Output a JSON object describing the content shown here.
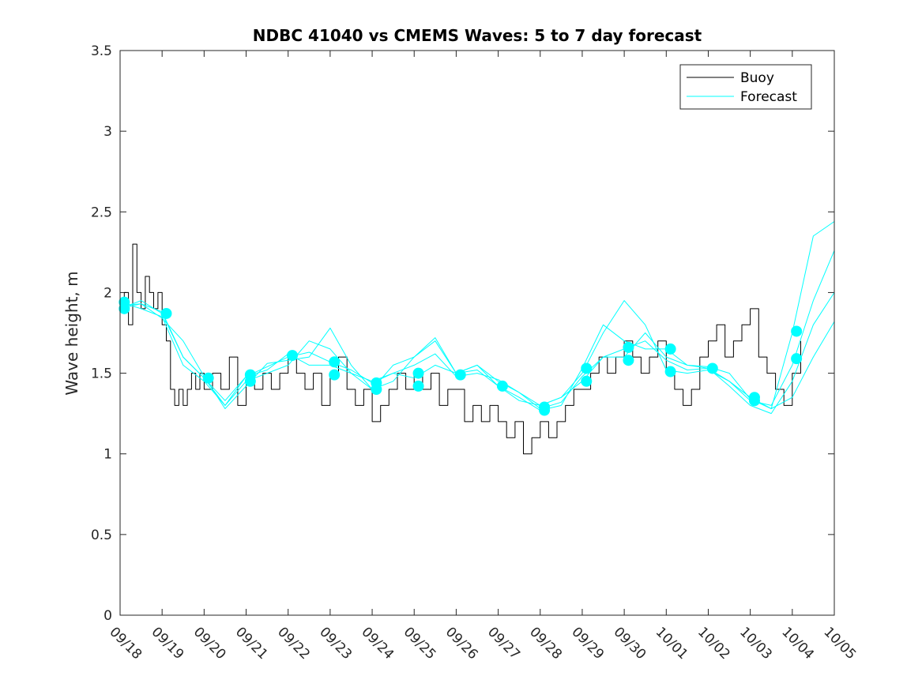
{
  "chart_data": {
    "type": "line",
    "title": "NDBC 41040 vs CMEMS Waves: 5 to 7 day forecast",
    "xlabel": "",
    "ylabel": "Wave height, m",
    "xlim": [
      0,
      17
    ],
    "ylim": [
      0,
      3.5
    ],
    "yticks": [
      0,
      0.5,
      1,
      1.5,
      2,
      2.5,
      3,
      3.5
    ],
    "ytick_labels": [
      "0",
      "0.5",
      "1",
      "1.5",
      "2",
      "2.5",
      "3",
      "3.5"
    ],
    "xticks": [
      0,
      1,
      2,
      3,
      4,
      5,
      6,
      7,
      8,
      9,
      10,
      11,
      12,
      13,
      14,
      15,
      16,
      17
    ],
    "xtick_labels": [
      "09/18",
      "09/19",
      "09/20",
      "09/21",
      "09/22",
      "09/23",
      "09/24",
      "09/25",
      "09/26",
      "09/27",
      "09/28",
      "09/29",
      "09/30",
      "10/01",
      "10/02",
      "10/03",
      "10/04",
      "10/05"
    ],
    "legend": {
      "location": "top-right",
      "entries": [
        "Buoy",
        "Forecast"
      ]
    },
    "colors": {
      "buoy": "#000000",
      "forecast": "#00ffff",
      "axis": "#262626"
    },
    "series": [
      {
        "name": "Buoy",
        "x": [
          0,
          0.1,
          0.2,
          0.3,
          0.4,
          0.5,
          0.6,
          0.7,
          0.8,
          0.9,
          1.0,
          1.1,
          1.2,
          1.3,
          1.4,
          1.5,
          1.6,
          1.7,
          1.8,
          1.9,
          2.0,
          2.2,
          2.4,
          2.6,
          2.8,
          3.0,
          3.2,
          3.4,
          3.6,
          3.8,
          4.0,
          4.2,
          4.4,
          4.6,
          4.8,
          5.0,
          5.2,
          5.4,
          5.6,
          5.8,
          6.0,
          6.2,
          6.4,
          6.6,
          6.8,
          7.0,
          7.2,
          7.4,
          7.6,
          7.8,
          8.0,
          8.2,
          8.4,
          8.6,
          8.8,
          9.0,
          9.2,
          9.4,
          9.6,
          9.8,
          10.0,
          10.2,
          10.4,
          10.6,
          10.8,
          11.0,
          11.2,
          11.4,
          11.6,
          11.8,
          12.0,
          12.2,
          12.4,
          12.6,
          12.8,
          13.0,
          13.2,
          13.4,
          13.6,
          13.8,
          14.0,
          14.2,
          14.4,
          14.6,
          14.8,
          15.0,
          15.2,
          15.4,
          15.6,
          15.8,
          16.0,
          16.2
        ],
        "y": [
          1.9,
          2.0,
          1.8,
          2.3,
          2.0,
          1.9,
          2.1,
          2.0,
          1.9,
          2.0,
          1.8,
          1.7,
          1.4,
          1.3,
          1.4,
          1.3,
          1.4,
          1.5,
          1.4,
          1.5,
          1.4,
          1.5,
          1.4,
          1.6,
          1.3,
          1.5,
          1.4,
          1.5,
          1.4,
          1.5,
          1.6,
          1.5,
          1.4,
          1.5,
          1.3,
          1.5,
          1.6,
          1.4,
          1.3,
          1.4,
          1.2,
          1.3,
          1.4,
          1.5,
          1.4,
          1.5,
          1.4,
          1.5,
          1.3,
          1.4,
          1.4,
          1.2,
          1.3,
          1.2,
          1.3,
          1.2,
          1.1,
          1.2,
          1.0,
          1.1,
          1.2,
          1.1,
          1.2,
          1.3,
          1.4,
          1.4,
          1.5,
          1.6,
          1.5,
          1.6,
          1.7,
          1.6,
          1.5,
          1.6,
          1.7,
          1.5,
          1.4,
          1.3,
          1.4,
          1.6,
          1.7,
          1.8,
          1.6,
          1.7,
          1.8,
          1.9,
          1.6,
          1.5,
          1.4,
          1.3,
          1.5,
          1.7
        ]
      },
      {
        "name": "Forecast",
        "x": [
          0,
          0.5,
          1.0,
          1.5,
          2.0,
          2.5,
          3.0,
          3.5,
          4.0,
          4.5,
          5.0,
          5.5,
          6.0,
          6.5,
          7.0,
          7.5,
          8.0,
          8.5,
          9.0,
          9.5,
          10.0,
          10.5,
          11.0,
          11.5,
          12.0,
          12.5,
          13.0,
          13.5,
          14.0,
          14.5,
          15.0,
          15.5,
          16.0,
          16.5,
          17.0
        ],
        "y": [
          1.9,
          1.95,
          1.87,
          1.6,
          1.47,
          1.33,
          1.48,
          1.54,
          1.6,
          1.63,
          1.57,
          1.52,
          1.44,
          1.5,
          1.47,
          1.55,
          1.5,
          1.55,
          1.45,
          1.38,
          1.28,
          1.32,
          1.48,
          1.6,
          1.65,
          1.7,
          1.58,
          1.52,
          1.53,
          1.45,
          1.33,
          1.3,
          1.55,
          1.95,
          2.26
        ]
      },
      {
        "name": "Forecast",
        "x": [
          0,
          0.5,
          1.0,
          1.5,
          2.0,
          2.5,
          3.0,
          3.5,
          4.0,
          4.5,
          5.0,
          5.5,
          6.0,
          6.5,
          7.0,
          7.5,
          8.0,
          8.5,
          9.0,
          9.5,
          10.0,
          10.5,
          11.0,
          11.5,
          12.0,
          12.5,
          13.0,
          13.5,
          14.0,
          14.5,
          15.0,
          15.5,
          16.0,
          16.5,
          17.0
        ],
        "y": [
          1.94,
          1.9,
          1.85,
          1.55,
          1.45,
          1.3,
          1.45,
          1.5,
          1.55,
          1.7,
          1.65,
          1.5,
          1.4,
          1.55,
          1.6,
          1.7,
          1.5,
          1.52,
          1.42,
          1.35,
          1.27,
          1.3,
          1.53,
          1.8,
          1.7,
          1.65,
          1.65,
          1.55,
          1.54,
          1.5,
          1.34,
          1.28,
          1.75,
          2.35,
          2.44
        ]
      },
      {
        "name": "Forecast",
        "x": [
          0,
          0.5,
          1.0,
          1.5,
          2.0,
          2.5,
          3.0,
          3.5,
          4.0,
          4.5,
          5.0,
          5.5,
          6.0,
          6.5,
          7.0,
          7.5,
          8.0,
          8.5,
          9.0,
          9.5,
          10.0,
          10.5,
          11.0,
          11.5,
          12.0,
          12.5,
          13.0,
          13.5,
          14.0,
          14.5,
          15.0,
          15.5,
          16.0,
          16.5,
          17.0
        ],
        "y": [
          1.92,
          1.93,
          1.84,
          1.7,
          1.48,
          1.28,
          1.42,
          1.56,
          1.58,
          1.6,
          1.78,
          1.55,
          1.4,
          1.45,
          1.6,
          1.72,
          1.5,
          1.55,
          1.42,
          1.33,
          1.3,
          1.35,
          1.45,
          1.6,
          1.6,
          1.75,
          1.6,
          1.55,
          1.53,
          1.42,
          1.3,
          1.25,
          1.45,
          1.8,
          2.0
        ]
      },
      {
        "name": "Forecast",
        "x": [
          0,
          0.5,
          1.0,
          1.5,
          2.0,
          2.5,
          3.0,
          3.5,
          4.0,
          4.5,
          5.0,
          5.5,
          6.0,
          6.5,
          7.0,
          7.5,
          8.0,
          8.5,
          9.0,
          9.5,
          10.0,
          10.5,
          11.0,
          11.5,
          12.0,
          12.5,
          13.0,
          13.5,
          14.0,
          14.5,
          15.0,
          15.5,
          16.0,
          16.5,
          17.0
        ],
        "y": [
          1.9,
          1.93,
          1.88,
          1.6,
          1.47,
          1.3,
          1.48,
          1.52,
          1.62,
          1.55,
          1.55,
          1.5,
          1.45,
          1.5,
          1.55,
          1.62,
          1.48,
          1.5,
          1.46,
          1.38,
          1.3,
          1.35,
          1.5,
          1.75,
          1.95,
          1.8,
          1.52,
          1.5,
          1.52,
          1.45,
          1.35,
          1.28,
          1.35,
          1.6,
          1.82
        ]
      }
    ],
    "markers": {
      "name": "Forecast",
      "x": [
        0.1,
        0.1,
        1.1,
        2.1,
        3.1,
        3.1,
        4.1,
        5.1,
        5.1,
        6.1,
        6.1,
        7.1,
        7.1,
        8.1,
        9.1,
        10.1,
        10.1,
        11.1,
        11.1,
        12.1,
        12.1,
        13.1,
        13.1,
        14.1,
        15.1,
        15.1,
        16.1,
        16.1
      ],
      "y": [
        1.94,
        1.9,
        1.87,
        1.47,
        1.49,
        1.45,
        1.61,
        1.57,
        1.49,
        1.44,
        1.4,
        1.5,
        1.42,
        1.49,
        1.42,
        1.29,
        1.27,
        1.53,
        1.45,
        1.66,
        1.58,
        1.65,
        1.51,
        1.53,
        1.35,
        1.33,
        1.76,
        1.59
      ]
    }
  }
}
